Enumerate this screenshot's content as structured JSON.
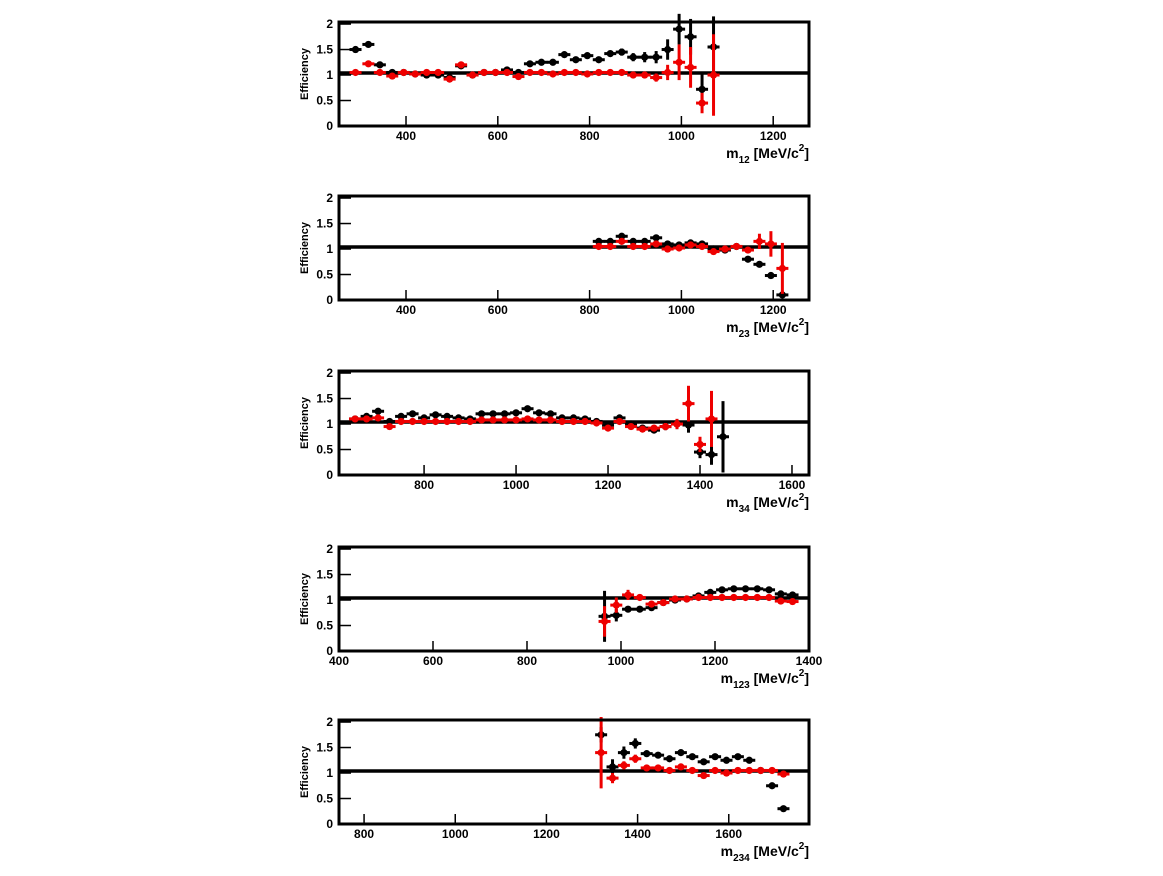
{
  "chart_data": [
    {
      "type": "scatter",
      "ylabel": "Efficiency",
      "xlabel": [
        "m",
        "12",
        " [MeV/c",
        "2",
        "]"
      ],
      "xlim": [
        254,
        1278
      ],
      "ylim": [
        0,
        2.04
      ],
      "xticks": [
        400,
        600,
        800,
        1000,
        1200
      ],
      "yticks": [
        0,
        0.5,
        1,
        1.5,
        2
      ],
      "hline": 1.04,
      "series": [
        {
          "color": "#000000",
          "x": [
            290,
            318,
            343,
            370,
            395,
            420,
            445,
            470,
            495,
            520,
            545,
            570,
            595,
            620,
            645,
            670,
            695,
            720,
            745,
            770,
            795,
            820,
            845,
            870,
            895,
            920,
            945,
            970,
            995,
            1020,
            1045,
            1070
          ],
          "values": [
            1.5,
            1.6,
            1.2,
            1.05,
            1.05,
            1.02,
            1.0,
            1.0,
            0.95,
            1.18,
            1.0,
            1.05,
            1.05,
            1.1,
            1.05,
            1.22,
            1.25,
            1.25,
            1.4,
            1.3,
            1.38,
            1.3,
            1.42,
            1.45,
            1.35,
            1.35,
            1.35,
            1.5,
            1.9,
            1.75,
            0.72,
            1.55
          ],
          "errors": [
            0.06,
            0.05,
            0.04,
            0.03,
            0.03,
            0.03,
            0.03,
            0.03,
            0.03,
            0.04,
            0.03,
            0.03,
            0.03,
            0.03,
            0.03,
            0.04,
            0.04,
            0.04,
            0.04,
            0.04,
            0.05,
            0.05,
            0.06,
            0.07,
            0.08,
            0.1,
            0.12,
            0.2,
            0.3,
            0.35,
            0.3,
            0.6
          ]
        },
        {
          "color": "#ee0000",
          "x": [
            290,
            318,
            343,
            370,
            395,
            420,
            445,
            470,
            495,
            520,
            545,
            570,
            595,
            620,
            645,
            670,
            695,
            720,
            745,
            770,
            795,
            820,
            845,
            870,
            895,
            920,
            945,
            970,
            995,
            1020,
            1045,
            1070
          ],
          "values": [
            1.05,
            1.22,
            1.05,
            0.98,
            1.05,
            1.02,
            1.05,
            1.05,
            0.92,
            1.2,
            1.0,
            1.05,
            1.05,
            1.05,
            0.97,
            1.05,
            1.05,
            1.02,
            1.05,
            1.05,
            1.02,
            1.05,
            1.05,
            1.05,
            1.0,
            1.0,
            0.95,
            1.05,
            1.25,
            1.15,
            0.45,
            1.0
          ],
          "errors": [
            0.03,
            0.03,
            0.03,
            0.03,
            0.03,
            0.03,
            0.03,
            0.03,
            0.03,
            0.04,
            0.03,
            0.03,
            0.03,
            0.03,
            0.03,
            0.03,
            0.03,
            0.03,
            0.03,
            0.03,
            0.03,
            0.03,
            0.04,
            0.04,
            0.05,
            0.06,
            0.08,
            0.15,
            0.35,
            0.4,
            0.2,
            0.8
          ]
        }
      ]
    },
    {
      "type": "scatter",
      "ylabel": "Efficiency",
      "xlabel": [
        "m",
        "23",
        " [MeV/c",
        "2",
        "]"
      ],
      "xlim": [
        254,
        1278
      ],
      "ylim": [
        0,
        2.04
      ],
      "xticks": [
        400,
        600,
        800,
        1000,
        1200
      ],
      "yticks": [
        0,
        0.5,
        1,
        1.5,
        2
      ],
      "hline": 1.04,
      "series": [
        {
          "color": "#000000",
          "x": [
            820,
            845,
            870,
            895,
            920,
            945,
            970,
            995,
            1020,
            1045,
            1070,
            1095,
            1120,
            1145,
            1170,
            1195,
            1220
          ],
          "values": [
            1.15,
            1.15,
            1.25,
            1.15,
            1.15,
            1.22,
            1.1,
            1.08,
            1.12,
            1.1,
            1.0,
            0.98,
            1.05,
            0.8,
            0.7,
            0.48,
            0.1
          ],
          "errors": [
            0.04,
            0.04,
            0.04,
            0.03,
            0.03,
            0.03,
            0.03,
            0.03,
            0.03,
            0.03,
            0.03,
            0.03,
            0.03,
            0.04,
            0.04,
            0.05,
            0.05
          ]
        },
        {
          "color": "#ee0000",
          "x": [
            820,
            845,
            870,
            895,
            920,
            945,
            970,
            995,
            1020,
            1045,
            1070,
            1095,
            1120,
            1145,
            1170,
            1195,
            1220
          ],
          "values": [
            1.05,
            1.05,
            1.15,
            1.05,
            1.05,
            1.1,
            1.0,
            1.02,
            1.08,
            1.05,
            0.95,
            1.0,
            1.05,
            0.98,
            1.15,
            1.1,
            0.62
          ],
          "errors": [
            0.04,
            0.04,
            0.04,
            0.03,
            0.03,
            0.03,
            0.03,
            0.03,
            0.03,
            0.03,
            0.03,
            0.03,
            0.04,
            0.06,
            0.15,
            0.25,
            0.5
          ]
        }
      ]
    },
    {
      "type": "scatter",
      "ylabel": "Efficiency",
      "xlabel": [
        "m",
        "34",
        " [MeV/c",
        "2",
        "]"
      ],
      "xlim": [
        615,
        1637
      ],
      "ylim": [
        0,
        2.04
      ],
      "xticks": [
        800,
        1000,
        1200,
        1400,
        1600
      ],
      "yticks": [
        0,
        0.5,
        1,
        1.5,
        2
      ],
      "hline": 1.04,
      "series": [
        {
          "color": "#000000",
          "x": [
            650,
            675,
            700,
            725,
            750,
            775,
            800,
            825,
            850,
            875,
            900,
            925,
            950,
            975,
            1000,
            1025,
            1050,
            1075,
            1100,
            1125,
            1150,
            1175,
            1200,
            1225,
            1250,
            1275,
            1300,
            1325,
            1350,
            1375,
            1400,
            1425,
            1450
          ],
          "values": [
            1.1,
            1.15,
            1.25,
            1.05,
            1.15,
            1.2,
            1.12,
            1.18,
            1.15,
            1.12,
            1.1,
            1.2,
            1.2,
            1.2,
            1.22,
            1.3,
            1.22,
            1.2,
            1.12,
            1.12,
            1.1,
            1.05,
            0.98,
            1.12,
            1.0,
            0.92,
            0.88,
            0.95,
            1.0,
            0.98,
            0.45,
            0.4,
            0.75
          ],
          "errors": [
            0.04,
            0.04,
            0.04,
            0.03,
            0.03,
            0.03,
            0.03,
            0.03,
            0.03,
            0.03,
            0.03,
            0.03,
            0.03,
            0.03,
            0.03,
            0.03,
            0.03,
            0.03,
            0.03,
            0.03,
            0.03,
            0.03,
            0.04,
            0.04,
            0.04,
            0.05,
            0.06,
            0.07,
            0.1,
            0.15,
            0.12,
            0.2,
            0.7
          ]
        },
        {
          "color": "#ee0000",
          "x": [
            650,
            675,
            700,
            725,
            750,
            775,
            800,
            825,
            850,
            875,
            900,
            925,
            950,
            975,
            1000,
            1025,
            1050,
            1075,
            1100,
            1125,
            1150,
            1175,
            1200,
            1225,
            1250,
            1275,
            1300,
            1325,
            1350,
            1375,
            1400,
            1425
          ],
          "values": [
            1.1,
            1.1,
            1.12,
            0.95,
            1.05,
            1.05,
            1.05,
            1.05,
            1.05,
            1.05,
            1.05,
            1.08,
            1.08,
            1.08,
            1.08,
            1.1,
            1.08,
            1.08,
            1.05,
            1.05,
            1.05,
            1.02,
            0.92,
            1.05,
            0.95,
            0.9,
            0.92,
            0.95,
            1.0,
            1.4,
            0.6,
            1.1
          ],
          "errors": [
            0.04,
            0.04,
            0.04,
            0.03,
            0.03,
            0.03,
            0.03,
            0.03,
            0.03,
            0.03,
            0.03,
            0.03,
            0.03,
            0.03,
            0.03,
            0.03,
            0.03,
            0.03,
            0.03,
            0.03,
            0.03,
            0.03,
            0.04,
            0.04,
            0.04,
            0.05,
            0.06,
            0.07,
            0.1,
            0.35,
            0.15,
            0.55
          ]
        }
      ]
    },
    {
      "type": "scatter",
      "ylabel": "Efficiency",
      "xlabel": [
        "m",
        "123",
        " [MeV/c",
        "2",
        "]"
      ],
      "xlim": [
        400,
        1400
      ],
      "ylim": [
        0,
        2.04
      ],
      "xticks": [
        400,
        600,
        800,
        1000,
        1200,
        1400
      ],
      "yticks": [
        0,
        0.5,
        1,
        1.5,
        2
      ],
      "hline": 1.04,
      "series": [
        {
          "color": "#000000",
          "x": [
            965,
            990,
            1015,
            1040,
            1065,
            1090,
            1115,
            1140,
            1165,
            1190,
            1215,
            1240,
            1265,
            1290,
            1315,
            1340,
            1365
          ],
          "values": [
            0.68,
            0.7,
            0.82,
            0.82,
            0.85,
            0.95,
            1.0,
            1.02,
            1.08,
            1.15,
            1.2,
            1.22,
            1.22,
            1.22,
            1.2,
            1.12,
            1.1
          ],
          "errors": [
            0.5,
            0.12,
            0.06,
            0.05,
            0.04,
            0.04,
            0.03,
            0.03,
            0.03,
            0.03,
            0.03,
            0.03,
            0.03,
            0.03,
            0.03,
            0.04,
            0.05
          ]
        },
        {
          "color": "#ee0000",
          "x": [
            965,
            990,
            1015,
            1040,
            1065,
            1090,
            1115,
            1140,
            1165,
            1190,
            1215,
            1240,
            1265,
            1290,
            1315,
            1340,
            1365
          ],
          "values": [
            0.58,
            0.9,
            1.1,
            1.05,
            0.92,
            0.95,
            1.02,
            1.02,
            1.05,
            1.05,
            1.05,
            1.05,
            1.05,
            1.05,
            1.05,
            0.98,
            0.97
          ],
          "errors": [
            0.3,
            0.15,
            0.1,
            0.06,
            0.05,
            0.04,
            0.03,
            0.03,
            0.03,
            0.03,
            0.03,
            0.03,
            0.03,
            0.03,
            0.03,
            0.04,
            0.05
          ]
        }
      ]
    },
    {
      "type": "scatter",
      "ylabel": "Efficiency",
      "xlabel": [
        "m",
        "234",
        " [MeV/c",
        "2",
        "]"
      ],
      "xlim": [
        745,
        1776
      ],
      "ylim": [
        0,
        2.04
      ],
      "xticks": [
        800,
        1000,
        1200,
        1400,
        1600
      ],
      "yticks": [
        0,
        0.5,
        1,
        1.5,
        2
      ],
      "hline": 1.04,
      "series": [
        {
          "color": "#000000",
          "x": [
            1320,
            1345,
            1370,
            1395,
            1420,
            1445,
            1470,
            1495,
            1520,
            1545,
            1570,
            1595,
            1620,
            1645,
            1670,
            1695,
            1720
          ],
          "values": [
            1.75,
            1.12,
            1.4,
            1.58,
            1.38,
            1.35,
            1.28,
            1.4,
            1.32,
            1.22,
            1.32,
            1.25,
            1.32,
            1.25,
            1.05,
            0.75,
            0.3
          ],
          "errors": [
            0.15,
            0.15,
            0.12,
            0.1,
            0.05,
            0.05,
            0.04,
            0.04,
            0.04,
            0.04,
            0.04,
            0.04,
            0.04,
            0.04,
            0.04,
            0.04,
            0.04
          ]
        },
        {
          "color": "#ee0000",
          "x": [
            1320,
            1345,
            1370,
            1395,
            1420,
            1445,
            1470,
            1495,
            1520,
            1545,
            1570,
            1595,
            1620,
            1645,
            1670,
            1695,
            1720
          ],
          "values": [
            1.4,
            0.9,
            1.15,
            1.28,
            1.1,
            1.1,
            1.05,
            1.12,
            1.05,
            0.95,
            1.05,
            1.0,
            1.05,
            1.05,
            1.05,
            1.05,
            0.98
          ],
          "errors": [
            0.7,
            0.1,
            0.08,
            0.08,
            0.04,
            0.04,
            0.04,
            0.04,
            0.04,
            0.04,
            0.04,
            0.04,
            0.04,
            0.04,
            0.04,
            0.04,
            0.04
          ]
        }
      ]
    }
  ]
}
